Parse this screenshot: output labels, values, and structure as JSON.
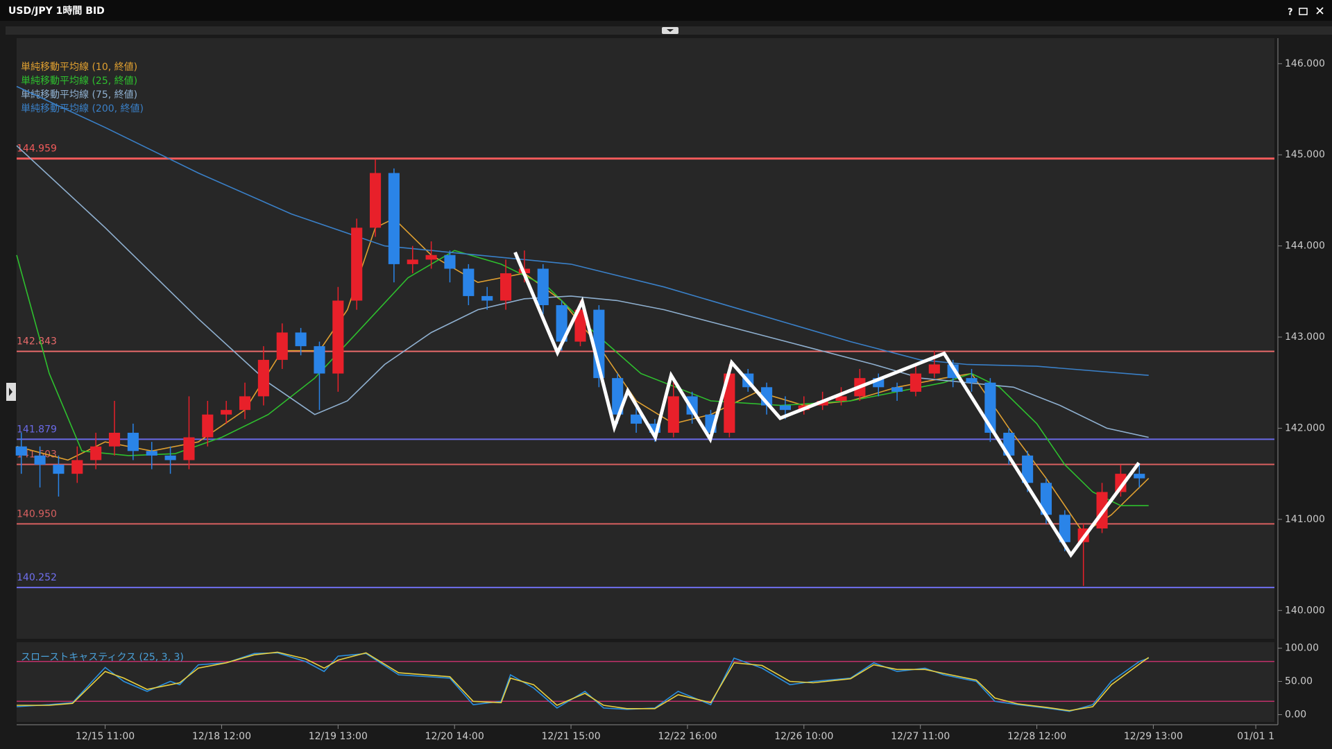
{
  "chart_data": {
    "type": "candlestick",
    "title": "USD/JPY 1時間 BID",
    "help": "?",
    "xlim": [
      -19,
      251
    ],
    "xticks": [
      {
        "value": 0,
        "label": "12/15 11:00"
      },
      {
        "value": 25,
        "label": "12/18 12:00"
      },
      {
        "value": 50,
        "label": "12/19 13:00"
      },
      {
        "value": 75,
        "label": "12/20 14:00"
      },
      {
        "value": 100,
        "label": "12/21 15:00"
      },
      {
        "value": 125,
        "label": "12/22 16:00"
      },
      {
        "value": 150,
        "label": "12/26 10:00"
      },
      {
        "value": 175,
        "label": "12/27 11:00"
      },
      {
        "value": 200,
        "label": "12/28 12:00"
      },
      {
        "value": 225,
        "label": "12/29 13:00"
      },
      {
        "value": 247,
        "label": "01/01 1"
      }
    ],
    "ylim": [
      139.69,
      146.28
    ],
    "yticks": [
      {
        "value": 140,
        "label": "140.000"
      },
      {
        "value": 141,
        "label": "141.000"
      },
      {
        "value": 142,
        "label": "142.000"
      },
      {
        "value": 143,
        "label": "143.000"
      },
      {
        "value": 144,
        "label": "144.000"
      },
      {
        "value": 145,
        "label": "145.000"
      },
      {
        "value": 146,
        "label": "146.000"
      }
    ],
    "up_color": "#e8202a",
    "down_color": "#2a84e8",
    "candles": [
      [
        -18,
        141.8,
        141.95,
        141.5,
        141.7
      ],
      [
        -14,
        141.7,
        141.8,
        141.35,
        141.6
      ],
      [
        -10,
        141.6,
        141.7,
        141.25,
        141.5
      ],
      [
        -6,
        141.5,
        141.8,
        141.4,
        141.65
      ],
      [
        -2,
        141.65,
        141.95,
        141.55,
        141.8
      ],
      [
        2,
        141.8,
        142.3,
        141.7,
        141.95
      ],
      [
        6,
        141.95,
        142.05,
        141.65,
        141.75
      ],
      [
        10,
        141.75,
        141.85,
        141.55,
        141.7
      ],
      [
        14,
        141.7,
        141.8,
        141.5,
        141.65
      ],
      [
        18,
        141.65,
        142.35,
        141.55,
        141.9
      ],
      [
        22,
        141.9,
        142.3,
        141.8,
        142.15
      ],
      [
        26,
        142.15,
        142.3,
        142.05,
        142.2
      ],
      [
        30,
        142.2,
        142.5,
        142.1,
        142.35
      ],
      [
        34,
        142.35,
        142.9,
        142.25,
        142.75
      ],
      [
        38,
        142.75,
        143.15,
        142.65,
        143.05
      ],
      [
        42,
        143.05,
        143.1,
        142.8,
        142.9
      ],
      [
        46,
        142.9,
        142.95,
        142.2,
        142.6
      ],
      [
        50,
        142.6,
        143.55,
        142.4,
        143.4
      ],
      [
        54,
        143.4,
        144.3,
        143.3,
        144.2
      ],
      [
        58,
        144.2,
        144.95,
        144.1,
        144.8
      ],
      [
        62,
        144.8,
        144.85,
        143.6,
        143.8
      ],
      [
        66,
        143.8,
        144.0,
        143.7,
        143.85
      ],
      [
        70,
        143.85,
        144.05,
        143.75,
        143.9
      ],
      [
        74,
        143.9,
        143.95,
        143.6,
        143.75
      ],
      [
        78,
        143.75,
        143.8,
        143.35,
        143.45
      ],
      [
        82,
        143.45,
        143.55,
        143.3,
        143.4
      ],
      [
        86,
        143.4,
        143.85,
        143.3,
        143.7
      ],
      [
        90,
        143.7,
        143.95,
        143.6,
        143.75
      ],
      [
        94,
        143.75,
        143.8,
        143.25,
        143.35
      ],
      [
        98,
        143.35,
        143.4,
        142.85,
        142.95
      ],
      [
        102,
        142.95,
        143.4,
        142.9,
        143.3
      ],
      [
        106,
        143.3,
        143.35,
        142.45,
        142.55
      ],
      [
        110,
        142.55,
        142.6,
        142.05,
        142.15
      ],
      [
        114,
        142.15,
        142.25,
        141.95,
        142.05
      ],
      [
        118,
        142.05,
        142.1,
        141.85,
        141.95
      ],
      [
        122,
        141.95,
        142.5,
        141.9,
        142.35
      ],
      [
        126,
        142.35,
        142.4,
        142.05,
        142.15
      ],
      [
        130,
        142.15,
        142.2,
        141.85,
        141.95
      ],
      [
        134,
        141.95,
        142.7,
        141.9,
        142.6
      ],
      [
        138,
        142.6,
        142.65,
        142.4,
        142.45
      ],
      [
        142,
        142.45,
        142.5,
        142.15,
        142.25
      ],
      [
        146,
        142.25,
        142.35,
        142.1,
        142.2
      ],
      [
        150,
        142.2,
        142.35,
        142.15,
        142.25
      ],
      [
        154,
        142.25,
        142.4,
        142.2,
        142.3
      ],
      [
        158,
        142.3,
        142.45,
        142.25,
        142.35
      ],
      [
        162,
        142.35,
        142.65,
        142.3,
        142.55
      ],
      [
        166,
        142.55,
        142.6,
        142.35,
        142.45
      ],
      [
        170,
        142.45,
        142.5,
        142.3,
        142.4
      ],
      [
        174,
        142.4,
        142.7,
        142.35,
        142.6
      ],
      [
        178,
        142.6,
        142.85,
        142.55,
        142.7
      ],
      [
        182,
        142.7,
        142.75,
        142.45,
        142.55
      ],
      [
        186,
        142.55,
        142.65,
        142.4,
        142.5
      ],
      [
        190,
        142.5,
        142.55,
        141.85,
        141.95
      ],
      [
        194,
        141.95,
        142.0,
        141.6,
        141.7
      ],
      [
        198,
        141.7,
        141.75,
        141.3,
        141.4
      ],
      [
        202,
        141.4,
        141.45,
        140.95,
        141.05
      ],
      [
        206,
        141.05,
        141.1,
        140.65,
        140.75
      ],
      [
        210,
        140.75,
        140.95,
        140.27,
        140.9
      ],
      [
        214,
        140.9,
        141.4,
        140.85,
        141.3
      ],
      [
        218,
        141.3,
        141.6,
        141.25,
        141.5
      ],
      [
        222,
        141.5,
        141.6,
        141.35,
        141.45
      ]
    ],
    "series": [
      {
        "name": "単純移動平均線 (10, 終値)",
        "color": "#e0a030",
        "x": [
          -19,
          -8,
          0,
          10,
          20,
          30,
          38,
          46,
          52,
          58,
          62,
          70,
          80,
          90,
          98,
          106,
          114,
          122,
          130,
          140,
          150,
          160,
          170,
          180,
          186,
          194,
          202,
          210,
          216,
          224
        ],
        "values": [
          141.8,
          141.65,
          141.85,
          141.75,
          141.85,
          142.2,
          142.85,
          142.85,
          143.3,
          144.2,
          144.3,
          143.9,
          143.6,
          143.7,
          143.4,
          142.9,
          142.3,
          142.05,
          142.15,
          142.4,
          142.25,
          142.3,
          142.45,
          142.55,
          142.6,
          142.0,
          141.45,
          140.85,
          141.05,
          141.45
        ]
      },
      {
        "name": "単純移動平均線 (25, 終値)",
        "color": "#2ec02e",
        "x": [
          -19,
          -12,
          -5,
          5,
          15,
          25,
          35,
          45,
          55,
          65,
          75,
          85,
          95,
          105,
          115,
          130,
          145,
          160,
          170,
          180,
          186,
          192,
          200,
          206,
          212,
          218,
          224
        ],
        "values": [
          143.9,
          142.6,
          141.75,
          141.7,
          141.72,
          141.9,
          142.15,
          142.55,
          143.1,
          143.65,
          143.95,
          143.8,
          143.55,
          143.05,
          142.6,
          142.3,
          142.25,
          142.3,
          142.4,
          142.5,
          142.6,
          142.45,
          142.05,
          141.6,
          141.3,
          141.15,
          141.15
        ]
      },
      {
        "name": "単純移動平均線 (75, 終値)",
        "color": "#8fb0d0",
        "x": [
          -19,
          0,
          20,
          35,
          45,
          52,
          60,
          70,
          80,
          90,
          100,
          110,
          120,
          135,
          150,
          165,
          175,
          185,
          195,
          205,
          215,
          224
        ],
        "values": [
          145.1,
          144.2,
          143.2,
          142.5,
          142.15,
          142.3,
          142.7,
          143.05,
          143.3,
          143.42,
          143.45,
          143.4,
          143.3,
          143.1,
          142.9,
          142.7,
          142.55,
          142.5,
          142.45,
          142.25,
          142.0,
          141.9
        ]
      },
      {
        "name": "単純移動平均線 (200, 終値)",
        "color": "#3a80c8",
        "x": [
          -19,
          0,
          20,
          40,
          60,
          80,
          100,
          120,
          140,
          160,
          175,
          185,
          200,
          224
        ],
        "values": [
          145.75,
          145.3,
          144.8,
          144.35,
          144.0,
          143.9,
          143.8,
          143.55,
          143.25,
          142.95,
          142.75,
          142.7,
          142.68,
          142.58
        ]
      }
    ],
    "levels": [
      {
        "value": 144.959,
        "label": "144.959",
        "color": "#f05a5a"
      },
      {
        "value": 142.843,
        "label": "142.843",
        "color": "#e86a6a"
      },
      {
        "value": 141.879,
        "label": "141.879",
        "color": "#6a6ae8"
      },
      {
        "value": 141.603,
        "label": "141.603",
        "color": "#d86060"
      },
      {
        "value": 140.95,
        "label": "140.950",
        "color": "#d86060"
      },
      {
        "value": 140.252,
        "label": "140.252",
        "color": "#7070f0"
      }
    ],
    "zigzag": {
      "color": "#ffffff",
      "x": [
        88,
        97.1,
        102.4,
        109.3,
        112.2,
        118.1,
        121.5,
        129.9,
        134.5,
        144.9,
        180.1,
        207.3,
        221.9
      ],
      "values": [
        143.93,
        142.83,
        143.39,
        142.01,
        142.41,
        141.9,
        142.58,
        141.88,
        142.72,
        142.11,
        142.82,
        140.61,
        141.62
      ]
    },
    "stochastic": {
      "label": "スローストキャスティクス (25, 3, 3)",
      "label_color": "#4aa0d8",
      "ylim": [
        -11,
        109
      ],
      "yticks": [
        {
          "value": 0,
          "label": "0.00"
        },
        {
          "value": 50,
          "label": "50.00"
        },
        {
          "value": 100,
          "label": "100.00"
        }
      ],
      "levels": [
        80,
        20
      ],
      "level_color": "#c0306a",
      "x": [
        -19,
        -12,
        -7,
        0,
        4,
        9,
        14,
        16,
        20,
        26,
        32,
        37,
        43,
        47,
        50,
        56,
        63,
        74,
        79,
        85,
        87,
        92,
        97,
        103,
        107,
        112,
        118,
        123,
        130,
        135,
        141,
        147,
        152,
        160,
        165,
        170,
        176,
        180,
        187,
        191,
        196,
        202,
        207,
        212,
        216,
        222,
        224
      ],
      "series": [
        {
          "color": "#2a90e0",
          "values": [
            12,
            15,
            18,
            71,
            50,
            35,
            50,
            45,
            75,
            78,
            92,
            93,
            80,
            65,
            88,
            92,
            60,
            55,
            15,
            20,
            60,
            40,
            10,
            35,
            10,
            8,
            10,
            35,
            15,
            85,
            70,
            45,
            50,
            55,
            78,
            65,
            70,
            60,
            50,
            20,
            15,
            10,
            5,
            15,
            50,
            80,
            85
          ]
        },
        {
          "color": "#e8d040",
          "values": [
            14,
            14,
            17,
            65,
            55,
            38,
            45,
            48,
            70,
            78,
            90,
            94,
            84,
            70,
            82,
            93,
            63,
            57,
            20,
            18,
            55,
            45,
            14,
            32,
            14,
            9,
            9,
            30,
            18,
            78,
            74,
            50,
            48,
            54,
            75,
            68,
            68,
            62,
            52,
            25,
            16,
            11,
            6,
            12,
            45,
            76,
            86
          ]
        }
      ]
    }
  }
}
